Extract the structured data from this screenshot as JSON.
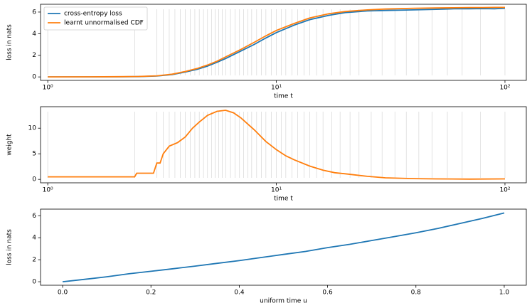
{
  "chart_data": [
    {
      "type": "line",
      "x_scale": "log",
      "xlim": [
        0.93,
        124
      ],
      "xticks": [
        {
          "value": 1,
          "label": "10⁰"
        },
        {
          "value": 10,
          "label": "10¹"
        },
        {
          "value": 100,
          "label": "10²"
        }
      ],
      "ylim": [
        -0.32,
        6.72
      ],
      "yticks": [
        0,
        2,
        4,
        6
      ],
      "xlabel": "time t",
      "ylabel": "loss in nats",
      "legend": "upper left",
      "sample_times": [
        1,
        2.4,
        3,
        3.2,
        3.4,
        3.6,
        3.8,
        4.0,
        4.2,
        4.4,
        4.6,
        4.8,
        5.0,
        5.2,
        5.4,
        5.6,
        5.8,
        6.0,
        6.3,
        6.6,
        6.9,
        7.2,
        7.5,
        7.8,
        8.2,
        8.6,
        9.0,
        9.5,
        10,
        10.5,
        11,
        11.7,
        12.4,
        13.2,
        14,
        15,
        16,
        17.5,
        19,
        21,
        23,
        26,
        29,
        33,
        37,
        42,
        48,
        56,
        65,
        78,
        100
      ],
      "x": [
        1,
        1.5,
        2,
        2.5,
        3,
        3.5,
        4,
        4.5,
        5,
        5.5,
        6,
        7,
        8,
        9,
        10,
        12,
        14,
        17,
        20,
        25,
        30,
        40,
        50,
        60,
        70,
        80,
        90,
        100
      ],
      "series": [
        {
          "name": "cross-entropy loss",
          "color": "#1f77b4",
          "values": [
            0,
            0,
            0.01,
            0.03,
            0.08,
            0.22,
            0.45,
            0.7,
            1.0,
            1.35,
            1.7,
            2.4,
            3.0,
            3.6,
            4.1,
            4.8,
            5.3,
            5.7,
            5.95,
            6.1,
            6.15,
            6.2,
            6.25,
            6.3,
            6.3,
            6.32,
            6.3,
            6.35
          ]
        },
        {
          "name": "learnt unnormalised CDF",
          "color": "#ff7f0e",
          "values": [
            0,
            0.01,
            0.02,
            0.04,
            0.1,
            0.25,
            0.5,
            0.78,
            1.1,
            1.45,
            1.85,
            2.55,
            3.2,
            3.8,
            4.3,
            4.95,
            5.45,
            5.85,
            6.05,
            6.2,
            6.28,
            6.35,
            6.38,
            6.4,
            6.42,
            6.42,
            6.43,
            6.43
          ]
        }
      ]
    },
    {
      "type": "line",
      "x_scale": "log",
      "xlim": [
        0.93,
        124
      ],
      "xticks": [
        {
          "value": 1,
          "label": "10⁰"
        },
        {
          "value": 10,
          "label": "10¹"
        },
        {
          "value": 100,
          "label": "10²"
        }
      ],
      "ylim": [
        -0.67,
        14.2
      ],
      "yticks": [
        0,
        5,
        10
      ],
      "xlabel": "time t",
      "ylabel": "weight",
      "sample_times": [
        1,
        2.4,
        3,
        3.2,
        3.4,
        3.6,
        3.8,
        4.0,
        4.2,
        4.4,
        4.6,
        4.8,
        5.0,
        5.2,
        5.4,
        5.6,
        5.8,
        6.0,
        6.3,
        6.6,
        6.9,
        7.2,
        7.5,
        7.8,
        8.2,
        8.6,
        9.0,
        9.5,
        10,
        10.5,
        11,
        11.7,
        12.4,
        13.2,
        14,
        15,
        16,
        17.5,
        19,
        21,
        23,
        26,
        29,
        33,
        37,
        42,
        48,
        56,
        65,
        78,
        100
      ],
      "x": [
        1,
        2.4,
        2.45,
        2.9,
        3.0,
        3.1,
        3.2,
        3.4,
        3.7,
        4,
        4.3,
        4.6,
        5,
        5.5,
        6,
        6.5,
        7,
        8,
        9,
        10,
        11,
        12,
        14,
        16,
        18,
        20,
        25,
        30,
        40,
        50,
        70,
        100
      ],
      "series": [
        {
          "color": "#ff7f0e",
          "values": [
            0.5,
            0.5,
            1.2,
            1.2,
            3.2,
            3.2,
            5,
            6.5,
            7.2,
            8.3,
            10,
            11.2,
            12.5,
            13.3,
            13.5,
            13,
            12,
            9.7,
            7.4,
            5.8,
            4.6,
            3.8,
            2.6,
            1.8,
            1.3,
            1.1,
            0.6,
            0.3,
            0.15,
            0.1,
            0.05,
            0.1
          ]
        }
      ]
    },
    {
      "type": "line",
      "x_scale": "linear",
      "xlim": [
        -0.05,
        1.05
      ],
      "xticks": [
        {
          "value": 0,
          "label": "0.0"
        },
        0.2,
        0.4,
        0.6,
        0.8,
        {
          "value": 1,
          "label": "1.0"
        }
      ],
      "ylim": [
        -0.32,
        6.6
      ],
      "yticks": [
        0,
        2,
        4,
        6
      ],
      "xlabel": "uniform time u",
      "ylabel": "loss in nats",
      "x": [
        0,
        0.05,
        0.1,
        0.15,
        0.2,
        0.25,
        0.3,
        0.35,
        0.4,
        0.45,
        0.5,
        0.55,
        0.6,
        0.65,
        0.7,
        0.75,
        0.8,
        0.85,
        0.9,
        0.95,
        1.0
      ],
      "series": [
        {
          "color": "#1f77b4",
          "values": [
            0,
            0.22,
            0.45,
            0.72,
            0.95,
            1.18,
            1.42,
            1.67,
            1.92,
            2.2,
            2.48,
            2.75,
            3.1,
            3.4,
            3.75,
            4.1,
            4.45,
            4.85,
            5.3,
            5.75,
            6.25
          ]
        }
      ]
    }
  ]
}
